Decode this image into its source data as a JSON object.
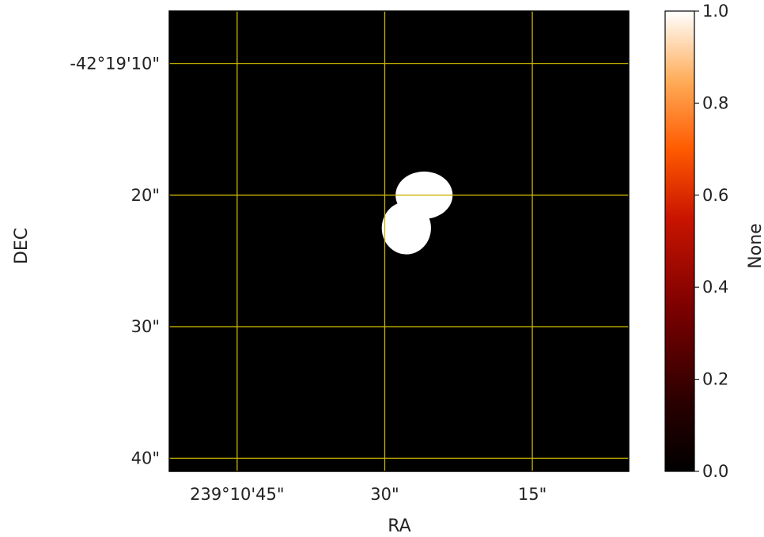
{
  "chart_data": {
    "type": "heatmap",
    "xlabel": "RA",
    "ylabel": "DEC",
    "x_ticks": [
      {
        "label": "239°10'45\"",
        "value_arcsec": 45
      },
      {
        "label": "30\"",
        "value_arcsec": 30
      },
      {
        "label": "15\"",
        "value_arcsec": 15
      }
    ],
    "y_ticks": [
      {
        "label": "-42°19'10\"",
        "value_arcsec": 10
      },
      {
        "label": "20\"",
        "value_arcsec": 20
      },
      {
        "label": "30\"",
        "value_arcsec": 30
      },
      {
        "label": "40\"",
        "value_arcsec": 40
      }
    ],
    "xlim_arcsec": [
      51.9,
      5.2
    ],
    "ylim_arcsec": [
      6,
      41
    ],
    "grid": true,
    "grid_color": "#c8b400",
    "background_value": 0.0,
    "mask": {
      "description_value": 1.0,
      "blobs": [
        {
          "ra_arcsec": 26.0,
          "dec_arcsec": 20.0,
          "radius_ra_arcsec": 2.9,
          "radius_dec_arcsec": 1.8
        },
        {
          "ra_arcsec": 27.8,
          "dec_arcsec": 22.5,
          "radius_ra_arcsec": 2.5,
          "radius_dec_arcsec": 2.0
        }
      ]
    },
    "colorbar": {
      "label": "None",
      "colormap": "gist_heat",
      "ticks": [
        "0.0",
        "0.2",
        "0.4",
        "0.6",
        "0.8",
        "1.0"
      ],
      "min": 0.0,
      "max": 1.0
    }
  }
}
